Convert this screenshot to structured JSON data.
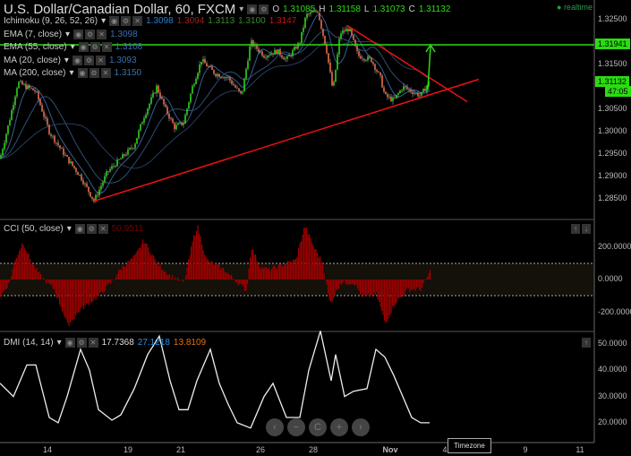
{
  "header": {
    "title": "U.S. Dollar/Canadian Dollar, 60, FXCM",
    "o_label": "O",
    "o": "1.31085",
    "h_label": "H",
    "h": "1.31158",
    "l_label": "L",
    "l": "1.31073",
    "c_label": "C",
    "c": "1.31132",
    "realtime": "realtime"
  },
  "indicators": [
    {
      "name": "Ichimoku (9, 26, 52, 26)",
      "values": [
        "1.3098",
        "1.3094",
        "1.3113",
        "1.3100",
        "1.3147"
      ],
      "colors": [
        "#2a7fd4",
        "#a02020",
        "#3a8a2a",
        "#3a8a2a",
        "#d01010"
      ]
    },
    {
      "name": "EMA (7, close)",
      "values": [
        "1.3098"
      ],
      "colors": [
        "#3a6fb0"
      ]
    },
    {
      "name": "EMA (55, close)",
      "values": [
        "1.3108"
      ],
      "colors": [
        "#3a6fb0"
      ]
    },
    {
      "name": "MA (20, close)",
      "values": [
        "1.3093"
      ],
      "colors": [
        "#3a6fb0"
      ]
    },
    {
      "name": "MA (200, close)",
      "values": [
        "1.3150"
      ],
      "colors": [
        "#3a6fb0"
      ]
    }
  ],
  "price_axis": {
    "ticks": [
      "1.32500",
      "1.31500",
      "1.30500",
      "1.30000",
      "1.29500",
      "1.29000",
      "1.28500"
    ],
    "tick_values": [
      1.325,
      1.315,
      1.305,
      1.3,
      1.295,
      1.29,
      1.285
    ],
    "level_tag": "1.31941",
    "price_tag": "1.31132",
    "countdown": "47:05"
  },
  "cci": {
    "name": "CCI (50, close)",
    "value": "50.9511",
    "ticks": [
      "200.0000",
      "0.0000",
      "-200.0000"
    ],
    "tick_values": [
      200,
      0,
      -200
    ]
  },
  "dmi": {
    "name": "DMI (14, 14)",
    "values": [
      "17.7368",
      "27.1218",
      "13.8109"
    ],
    "colors": [
      "#ddd",
      "#2a8fe0",
      "#e07010"
    ],
    "ticks": [
      "50.0000",
      "40.0000",
      "30.0000",
      "20.0000"
    ],
    "tick_values": [
      50,
      40,
      30,
      20
    ]
  },
  "x_axis": {
    "labels": [
      "14",
      "19",
      "21",
      "26",
      "28",
      "Nov",
      "4",
      "9",
      "11"
    ]
  },
  "timezone": "Timezone",
  "nav_buttons": [
    "‹",
    "−",
    "C",
    "+",
    "›"
  ],
  "colors": {
    "up": "#27d914",
    "down": "#f06a4a",
    "level": "#2bdc12",
    "trend": "#ee1111",
    "cci": "#a00000"
  },
  "chart_data": {
    "type": "candlestick",
    "price_path": [
      [
        0,
        1.294
      ],
      [
        10,
        1.302
      ],
      [
        20,
        1.311
      ],
      [
        40,
        1.309
      ],
      [
        55,
        1.3
      ],
      [
        75,
        1.294
      ],
      [
        90,
        1.29
      ],
      [
        105,
        1.2845
      ],
      [
        120,
        1.291
      ],
      [
        135,
        1.294
      ],
      [
        150,
        1.297
      ],
      [
        160,
        1.303
      ],
      [
        175,
        1.31
      ],
      [
        185,
        1.305
      ],
      [
        195,
        1.301
      ],
      [
        205,
        1.302
      ],
      [
        215,
        1.31
      ],
      [
        225,
        1.316
      ],
      [
        240,
        1.313
      ],
      [
        255,
        1.312
      ],
      [
        270,
        1.308
      ],
      [
        280,
        1.32
      ],
      [
        295,
        1.317
      ],
      [
        310,
        1.318
      ],
      [
        320,
        1.316
      ],
      [
        335,
        1.32
      ],
      [
        342,
        1.326
      ],
      [
        355,
        1.327
      ],
      [
        365,
        1.318
      ],
      [
        372,
        1.309
      ],
      [
        380,
        1.322
      ],
      [
        390,
        1.323
      ],
      [
        400,
        1.317
      ],
      [
        415,
        1.316
      ],
      [
        425,
        1.312
      ],
      [
        430,
        1.308
      ],
      [
        440,
        1.307
      ],
      [
        450,
        1.31
      ],
      [
        460,
        1.309
      ],
      [
        470,
        1.308
      ],
      [
        480,
        1.3113
      ]
    ],
    "cci_path": [
      [
        0,
        -100
      ],
      [
        10,
        -20
      ],
      [
        15,
        100
      ],
      [
        25,
        230
      ],
      [
        35,
        100
      ],
      [
        45,
        20
      ],
      [
        60,
        -60
      ],
      [
        70,
        -200
      ],
      [
        75,
        -280
      ],
      [
        90,
        -180
      ],
      [
        110,
        -100
      ],
      [
        125,
        -10
      ],
      [
        135,
        70
      ],
      [
        150,
        140
      ],
      [
        160,
        240
      ],
      [
        175,
        100
      ],
      [
        190,
        20
      ],
      [
        205,
        -20
      ],
      [
        215,
        240
      ],
      [
        220,
        330
      ],
      [
        230,
        120
      ],
      [
        250,
        60
      ],
      [
        265,
        -20
      ],
      [
        275,
        -70
      ],
      [
        280,
        200
      ],
      [
        290,
        80
      ],
      [
        300,
        60
      ],
      [
        310,
        80
      ],
      [
        330,
        120
      ],
      [
        340,
        330
      ],
      [
        350,
        200
      ],
      [
        360,
        100
      ],
      [
        368,
        -150
      ],
      [
        380,
        -20
      ],
      [
        395,
        -20
      ],
      [
        405,
        -110
      ],
      [
        420,
        -90
      ],
      [
        430,
        -270
      ],
      [
        440,
        -150
      ],
      [
        455,
        -60
      ],
      [
        470,
        -60
      ],
      [
        480,
        50
      ]
    ],
    "dmi_path": [
      [
        0,
        35
      ],
      [
        15,
        30
      ],
      [
        30,
        42
      ],
      [
        40,
        42
      ],
      [
        55,
        22
      ],
      [
        65,
        20
      ],
      [
        75,
        30
      ],
      [
        90,
        48
      ],
      [
        100,
        40
      ],
      [
        110,
        25
      ],
      [
        125,
        21
      ],
      [
        135,
        23
      ],
      [
        150,
        33
      ],
      [
        165,
        46
      ],
      [
        178,
        53
      ],
      [
        190,
        36
      ],
      [
        200,
        25
      ],
      [
        210,
        25
      ],
      [
        220,
        36
      ],
      [
        235,
        48
      ],
      [
        245,
        35
      ],
      [
        255,
        27
      ],
      [
        265,
        20
      ],
      [
        280,
        18
      ],
      [
        295,
        30
      ],
      [
        305,
        35
      ],
      [
        320,
        22
      ],
      [
        335,
        22
      ],
      [
        345,
        40
      ],
      [
        358,
        55
      ],
      [
        370,
        36
      ],
      [
        375,
        46
      ],
      [
        385,
        30
      ],
      [
        395,
        32
      ],
      [
        410,
        33
      ],
      [
        420,
        48
      ],
      [
        430,
        45
      ],
      [
        440,
        38
      ],
      [
        450,
        30
      ],
      [
        460,
        22
      ],
      [
        470,
        20
      ],
      [
        480,
        20
      ]
    ],
    "trendlines": [
      {
        "from": [
          105,
          1.2845
        ],
        "to": [
          535,
          1.3117
        ]
      },
      {
        "from": [
          388,
          1.3237
        ],
        "to": [
          522,
          1.3067
        ]
      }
    ],
    "level": 1.31941
  }
}
